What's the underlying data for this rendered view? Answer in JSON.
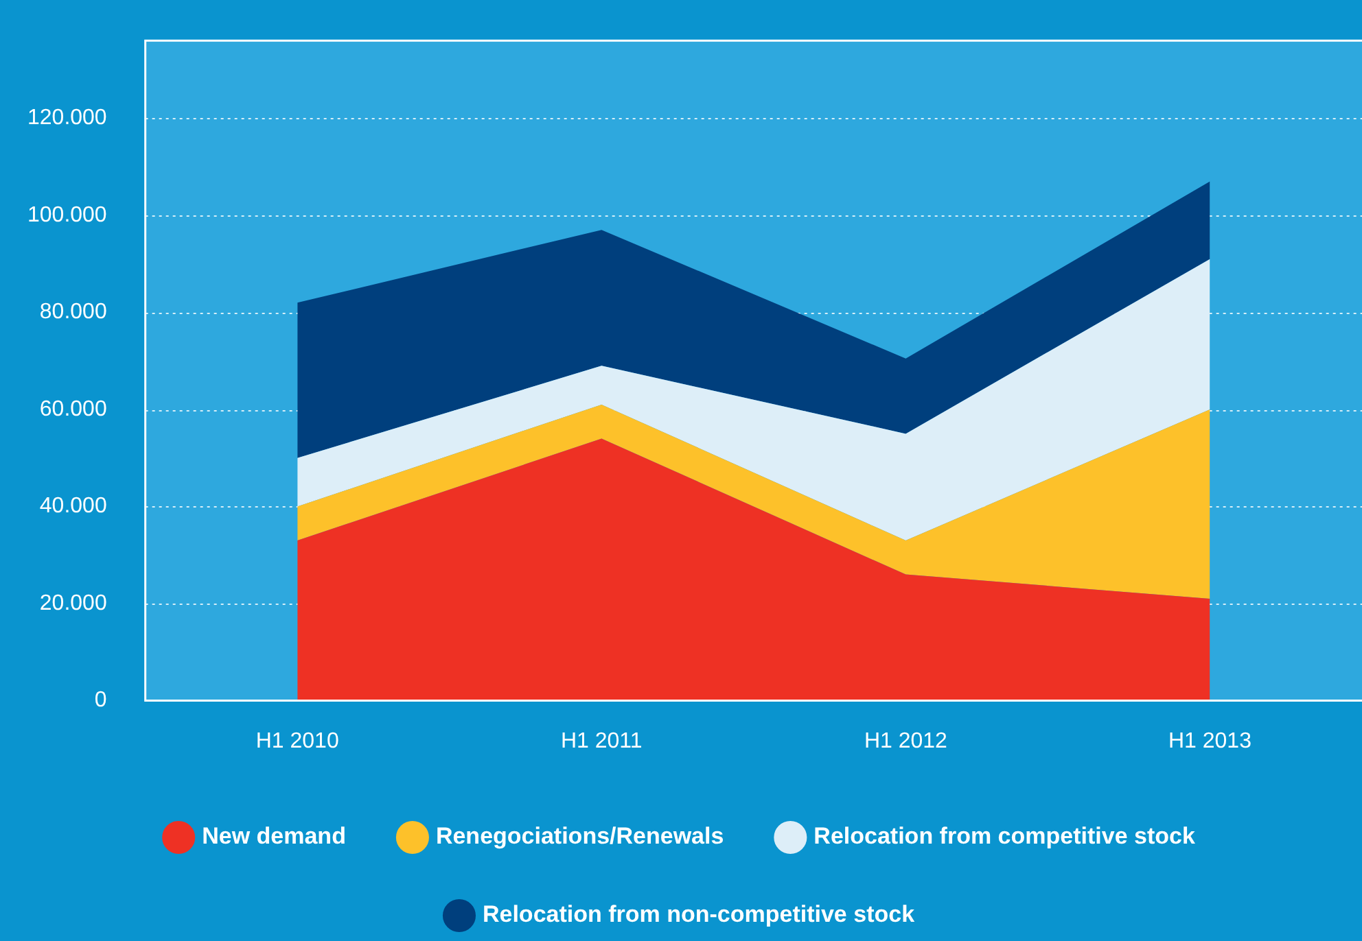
{
  "chart_data": {
    "type": "area",
    "stacked": true,
    "categories": [
      "H1 2010",
      "H1 2011",
      "H1 2012",
      "H1 2013"
    ],
    "series": [
      {
        "name": "New demand",
        "color": "#ee3124",
        "values": [
          33000,
          54000,
          26000,
          21000
        ]
      },
      {
        "name": "Renegociations/Renewals",
        "color": "#fdc12a",
        "values": [
          7000,
          7000,
          7000,
          39000
        ]
      },
      {
        "name": "Relocation from competitive stock",
        "color": "#ddeef8",
        "values": [
          10000,
          8000,
          22000,
          31000
        ]
      },
      {
        "name": "Relocation from non-competitive stock",
        "color": "#003f7d",
        "values": [
          32000,
          28000,
          15500,
          16000
        ]
      }
    ],
    "ylim": [
      0,
      136000
    ],
    "yticks": [
      0,
      {
        "value": 20000,
        "label": "20.000"
      },
      {
        "value": 40000,
        "label": "40.000"
      },
      {
        "value": 60000,
        "label": "60.000"
      },
      {
        "value": 80000,
        "label": "80.000"
      },
      {
        "value": 100000,
        "label": "100.000"
      },
      {
        "value": 120000,
        "label": "120.000"
      }
    ],
    "grid": "y",
    "legend": "bottom"
  }
}
